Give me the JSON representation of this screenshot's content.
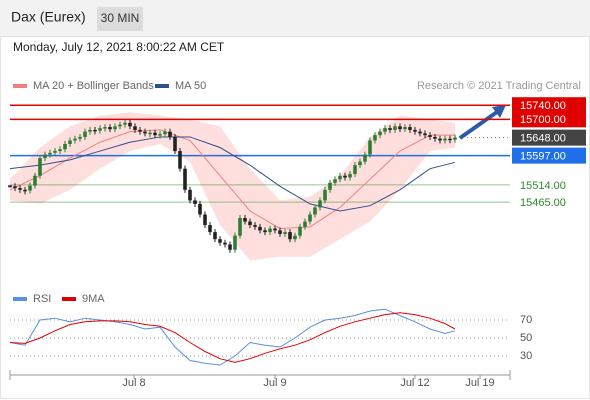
{
  "header": {
    "title": "Dax (Eurex)",
    "interval": "30 MIN",
    "timestamp": "Monday, July 12, 2021 8:00:22 AM CET"
  },
  "chart_data": [
    {
      "type": "candlestick",
      "legend": [
        "MA 20 + Bollinger Bands",
        "MA 50"
      ],
      "credit": "Research © 2021 Trading Central",
      "xlim": [
        0,
        100
      ],
      "ylim": [
        15230,
        15925
      ],
      "xticks": [
        {
          "value": 24.8,
          "label": "Jul 8"
        },
        {
          "value": 53,
          "label": "Jul 9"
        },
        {
          "value": 81,
          "label": "Jul 12"
        },
        {
          "value": 94,
          "label": "Jul 19"
        }
      ],
      "up_color": "#2e7d32",
      "down_color": "#222222",
      "closes": [
        15510,
        15505,
        15500,
        15498,
        15512,
        15540,
        15590,
        15600,
        15605,
        15610,
        15615,
        15630,
        15640,
        15645,
        15650,
        15665,
        15670,
        15668,
        15675,
        15678,
        15672,
        15680,
        15685,
        15690,
        15680,
        15670,
        15665,
        15660,
        15662,
        15655,
        15658,
        15665,
        15650,
        15610,
        15560,
        15500,
        15470,
        15460,
        15430,
        15400,
        15380,
        15360,
        15350,
        15345,
        15330,
        15370,
        15420,
        15410,
        15400,
        15395,
        15385,
        15380,
        15390,
        15385,
        15375,
        15380,
        15360,
        15370,
        15395,
        15410,
        15430,
        15450,
        15470,
        15500,
        15520,
        15530,
        15540,
        15535,
        15545,
        15570,
        15580,
        15600,
        15640,
        15655,
        15665,
        15675,
        15670,
        15680,
        15672,
        15678,
        15670,
        15665,
        15660,
        15655,
        15650,
        15645,
        15640,
        15645,
        15642,
        15648
      ],
      "ma_x": [
        0,
        6,
        12,
        18,
        24,
        30,
        36,
        42,
        48,
        54,
        60,
        66,
        72,
        78,
        84,
        89
      ],
      "series": [
        {
          "name": "MA 20 + Bollinger Bands",
          "color": "#f08080",
          "values": [
            15500,
            15540,
            15590,
            15635,
            15665,
            15670,
            15640,
            15540,
            15440,
            15390,
            15395,
            15450,
            15530,
            15610,
            15655,
            15655
          ]
        },
        {
          "name": "MA 50",
          "color": "#2f4f8f",
          "values": [
            15560,
            15570,
            15585,
            15610,
            15635,
            15650,
            15650,
            15620,
            15570,
            15510,
            15460,
            15440,
            15455,
            15500,
            15560,
            15578
          ]
        }
      ],
      "band_color": "#ffd6d6",
      "band_upper": [
        15530,
        15620,
        15680,
        15710,
        15720,
        15710,
        15700,
        15680,
        15560,
        15470,
        15480,
        15540,
        15650,
        15710,
        15700,
        15690
      ],
      "band_lower": [
        15470,
        15460,
        15500,
        15560,
        15610,
        15630,
        15580,
        15400,
        15300,
        15310,
        15310,
        15360,
        15410,
        15500,
        15610,
        15620
      ],
      "levels": [
        {
          "value": 15740,
          "label": "15740.00",
          "color": "#e00000",
          "style": "box"
        },
        {
          "value": 15700,
          "label": "15700.00",
          "color": "#e00000",
          "style": "box"
        },
        {
          "value": 15648,
          "label": "15648.00",
          "color": "#444444",
          "style": "current"
        },
        {
          "value": 15597,
          "label": "15597.00",
          "color": "#1e6fe8",
          "style": "box"
        },
        {
          "value": 15514,
          "label": "15514.00",
          "color": "#2e8b2e",
          "style": "text"
        },
        {
          "value": 15465,
          "label": "15465.00",
          "color": "#2e8b2e",
          "style": "text"
        }
      ]
    },
    {
      "type": "line",
      "legend": [
        "RSI",
        "9MA"
      ],
      "xlim": [
        0,
        100
      ],
      "ylim": [
        15,
        85
      ],
      "yticks": [
        70,
        50,
        30
      ],
      "x": [
        0,
        3,
        6,
        9,
        12,
        15,
        18,
        21,
        24,
        27,
        30,
        33,
        36,
        39,
        42,
        45,
        48,
        51,
        54,
        57,
        60,
        63,
        66,
        69,
        72,
        75,
        78,
        81,
        84,
        87,
        89
      ],
      "series": [
        {
          "name": "RSI",
          "color": "#5b8de0",
          "values": [
            45,
            42,
            70,
            72,
            68,
            72,
            70,
            68,
            65,
            60,
            62,
            40,
            25,
            22,
            20,
            30,
            45,
            42,
            40,
            50,
            62,
            70,
            72,
            75,
            80,
            82,
            75,
            68,
            60,
            55,
            58
          ]
        },
        {
          "name": "9MA",
          "color": "#e00000",
          "values": [
            45,
            44,
            50,
            58,
            65,
            68,
            69,
            69,
            68,
            65,
            63,
            56,
            45,
            35,
            27,
            23,
            27,
            33,
            38,
            42,
            48,
            56,
            63,
            68,
            72,
            76,
            78,
            76,
            72,
            66,
            60
          ]
        }
      ]
    }
  ]
}
